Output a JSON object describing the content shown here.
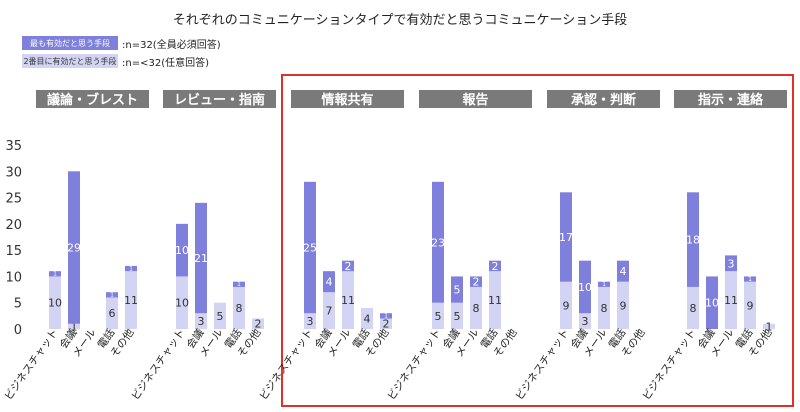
{
  "chart_data": {
    "type": "bar",
    "title": "それぞれのコミュニケーションタイプで有効だと思うコミュニケーション手段",
    "legend": [
      {
        "label": "最も有効だと思う手段",
        "note": ":n=32(全員必須回答)",
        "color": "#7f7fdc"
      },
      {
        "label": "2番目に有効だと思う手段",
        "note": ":n=<32(任意回答)",
        "color": "#d3d3f3"
      }
    ],
    "ylim": [
      0,
      35
    ],
    "yticks": [
      0,
      5,
      10,
      15,
      20,
      25,
      30,
      35
    ],
    "grid": false,
    "highlight_groups": [
      "情報共有",
      "報告",
      "承認・判断",
      "指示・連絡"
    ],
    "highlight_color": "#e0302a",
    "categories": [
      "ビジネスチャット",
      "会議",
      "メール",
      "電話",
      "その他"
    ],
    "groups": [
      {
        "name": "議論・ブレスト",
        "series": [
          {
            "name": "最も有効だと思う手段",
            "values": [
              1,
              29,
              0,
              1,
              1
            ]
          },
          {
            "name": "2番目に有効だと思う手段",
            "values": [
              10,
              1,
              0,
              6,
              11
            ]
          }
        ]
      },
      {
        "name": "レビュー・指南",
        "series": [
          {
            "name": "最も有効だと思う手段",
            "values": [
              10,
              21,
              0,
              1,
              0
            ]
          },
          {
            "name": "2番目に有効だと思う手段",
            "values": [
              10,
              3,
              5,
              8,
              2
            ]
          }
        ]
      },
      {
        "name": "情報共有",
        "series": [
          {
            "name": "最も有効だと思う手段",
            "values": [
              25,
              4,
              2,
              0,
              1
            ]
          },
          {
            "name": "2番目に有効だと思う手段",
            "values": [
              3,
              7,
              11,
              4,
              2
            ]
          }
        ]
      },
      {
        "name": "報告",
        "series": [
          {
            "name": "最も有効だと思う手段",
            "values": [
              23,
              5,
              2,
              2,
              0
            ]
          },
          {
            "name": "2番目に有効だと思う手段",
            "values": [
              5,
              5,
              8,
              11,
              0
            ]
          }
        ]
      },
      {
        "name": "承認・判断",
        "series": [
          {
            "name": "最も有効だと思う手段",
            "values": [
              17,
              10,
              1,
              4,
              0
            ]
          },
          {
            "name": "2番目に有効だと思う手段",
            "values": [
              9,
              3,
              8,
              9,
              0
            ]
          }
        ]
      },
      {
        "name": "指示・連絡",
        "series": [
          {
            "name": "最も有効だと思う手段",
            "values": [
              18,
              10,
              3,
              1,
              0
            ]
          },
          {
            "name": "2番目に有効だと思う手段",
            "values": [
              8,
              0,
              11,
              9,
              1
            ]
          }
        ]
      }
    ]
  }
}
